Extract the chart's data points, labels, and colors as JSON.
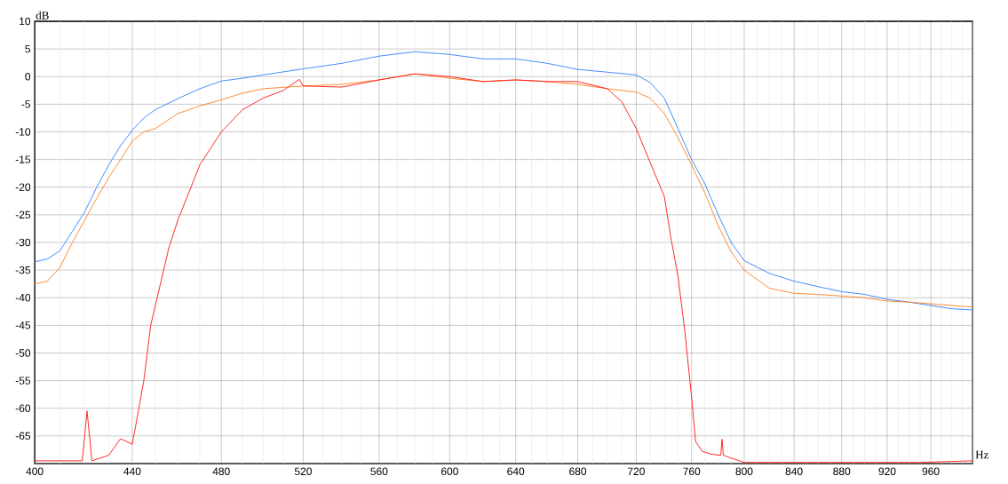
{
  "chart_data": {
    "type": "line",
    "xlabel": "Hz",
    "ylabel": "dB",
    "log": "x",
    "grid": true,
    "marker": "none",
    "line_style": "solid",
    "xlim": [
      400,
      1000
    ],
    "ylim": [
      -70,
      10
    ],
    "xticks": [
      400,
      {
        "value": 410,
        "label": null
      },
      {
        "value": 420,
        "label": null
      },
      {
        "value": 430,
        "label": null
      },
      440,
      {
        "value": 450,
        "label": null
      },
      {
        "value": 460,
        "label": null
      },
      {
        "value": 470,
        "label": null
      },
      480,
      {
        "value": 490,
        "label": null
      },
      {
        "value": 500,
        "label": null
      },
      {
        "value": 510,
        "label": null
      },
      520,
      {
        "value": 530,
        "label": null
      },
      {
        "value": 540,
        "label": null
      },
      {
        "value": 550,
        "label": null
      },
      560,
      {
        "value": 570,
        "label": null
      },
      {
        "value": 580,
        "label": null
      },
      {
        "value": 590,
        "label": null
      },
      600,
      {
        "value": 610,
        "label": null
      },
      {
        "value": 620,
        "label": null
      },
      {
        "value": 630,
        "label": null
      },
      640,
      {
        "value": 650,
        "label": null
      },
      {
        "value": 660,
        "label": null
      },
      {
        "value": 670,
        "label": null
      },
      680,
      {
        "value": 690,
        "label": null
      },
      {
        "value": 700,
        "label": null
      },
      {
        "value": 710,
        "label": null
      },
      720,
      {
        "value": 730,
        "label": null
      },
      {
        "value": 740,
        "label": null
      },
      {
        "value": 750,
        "label": null
      },
      760,
      {
        "value": 770,
        "label": null
      },
      {
        "value": 780,
        "label": null
      },
      {
        "value": 790,
        "label": null
      },
      800,
      {
        "value": 810,
        "label": null
      },
      {
        "value": 820,
        "label": null
      },
      {
        "value": 830,
        "label": null
      },
      840,
      {
        "value": 850,
        "label": null
      },
      {
        "value": 860,
        "label": null
      },
      {
        "value": 870,
        "label": null
      },
      880,
      {
        "value": 890,
        "label": null
      },
      {
        "value": 900,
        "label": null
      },
      {
        "value": 910,
        "label": null
      },
      920,
      {
        "value": 930,
        "label": null
      },
      {
        "value": 940,
        "label": null
      },
      {
        "value": 950,
        "label": null
      },
      960,
      {
        "value": 970,
        "label": null
      },
      {
        "value": 980,
        "label": null
      },
      {
        "value": 990,
        "label": null
      },
      {
        "value": 1000,
        "label": null
      }
    ],
    "yticks": [
      10,
      5,
      0,
      -5,
      -10,
      -15,
      -20,
      -25,
      -30,
      -35,
      -40,
      -45,
      -50,
      -55,
      -60,
      -65,
      {
        "value": -70,
        "label": null
      }
    ],
    "series": [
      {
        "color": "#2f80ff",
        "x": [
          400,
          405,
          410,
          415,
          420,
          425,
          430,
          435,
          440,
          445,
          450,
          460,
          470,
          480,
          490,
          500,
          520,
          540,
          560,
          580,
          600,
          620,
          640,
          660,
          680,
          700,
          720,
          730,
          740,
          750,
          760,
          770,
          780,
          790,
          800,
          820,
          840,
          860,
          880,
          900,
          920,
          940,
          960,
          980,
          1000
        ],
        "values": [
          -33.5,
          -33,
          -31.5,
          -28,
          -24.5,
          -20,
          -16,
          -12.5,
          -9.7,
          -7.5,
          -6,
          -4,
          -2.2,
          -0.8,
          -0.3,
          0.3,
          1.4,
          2.4,
          3.7,
          4.5,
          4,
          3.2,
          3.2,
          2.4,
          1.3,
          0.8,
          0.3,
          -1.1,
          -3.9,
          -9.4,
          -15,
          -19.4,
          -25,
          -30,
          -33.3,
          -35.6,
          -37,
          -38,
          -38.9,
          -39.4,
          -40.3,
          -40.8,
          -41.4,
          -42,
          -42.2
        ]
      },
      {
        "color": "#ff7f1e",
        "x": [
          400,
          405,
          410,
          415,
          420,
          425,
          430,
          435,
          440,
          445,
          450,
          460,
          470,
          480,
          490,
          500,
          520,
          540,
          560,
          580,
          600,
          620,
          640,
          660,
          680,
          700,
          720,
          730,
          740,
          750,
          760,
          770,
          780,
          790,
          800,
          820,
          840,
          860,
          880,
          900,
          920,
          940,
          960,
          980,
          1000
        ],
        "values": [
          -37.5,
          -37,
          -34.5,
          -30,
          -26,
          -22,
          -18.3,
          -15,
          -11.7,
          -10,
          -9.4,
          -6.7,
          -5.3,
          -4.2,
          -3,
          -2.2,
          -1.7,
          -1.4,
          -0.6,
          0.5,
          -0.3,
          -0.9,
          -0.6,
          -0.9,
          -1.4,
          -2.2,
          -2.8,
          -3.9,
          -6.7,
          -11,
          -16,
          -21,
          -27,
          -31.7,
          -35,
          -38.3,
          -39.2,
          -39.4,
          -39.7,
          -40,
          -40.6,
          -40.8,
          -41.1,
          -41.4,
          -41.7
        ]
      },
      {
        "color": "#ff1414",
        "x": [
          400,
          410,
          419,
          421,
          423,
          430,
          435,
          440,
          442,
          445,
          448,
          452,
          456,
          460,
          465,
          470,
          480,
          490,
          500,
          510,
          518,
          520,
          540,
          560,
          580,
          600,
          620,
          640,
          660,
          680,
          700,
          710,
          720,
          730,
          740,
          745,
          750,
          755,
          760,
          763,
          768,
          775,
          782,
          783,
          784,
          790,
          800,
          850,
          900,
          950,
          1000
        ],
        "values": [
          -69.5,
          -69.5,
          -69.5,
          -60.5,
          -69.5,
          -68.5,
          -65.5,
          -66.5,
          -62,
          -55,
          -45,
          -38,
          -31,
          -26,
          -21,
          -16,
          -10,
          -6,
          -3.9,
          -2.5,
          -0.5,
          -1.7,
          -1.9,
          -0.6,
          0.5,
          0,
          -0.9,
          -0.6,
          -0.9,
          -0.9,
          -2.2,
          -4.6,
          -9.4,
          -15.6,
          -21.7,
          -29.4,
          -36,
          -46,
          -58,
          -66,
          -67.8,
          -68.3,
          -68.5,
          -65.6,
          -68.5,
          -69,
          -69.8,
          -69.8,
          -69.8,
          -69.8,
          -69.5
        ]
      }
    ]
  }
}
